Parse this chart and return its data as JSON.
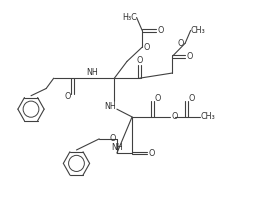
{
  "bg_color": "#ffffff",
  "line_color": "#404040",
  "text_color": "#303030",
  "fig_width": 2.54,
  "fig_height": 2.08,
  "dpi": 100,
  "xlim": [
    0,
    10
  ],
  "ylim": [
    0,
    8
  ]
}
